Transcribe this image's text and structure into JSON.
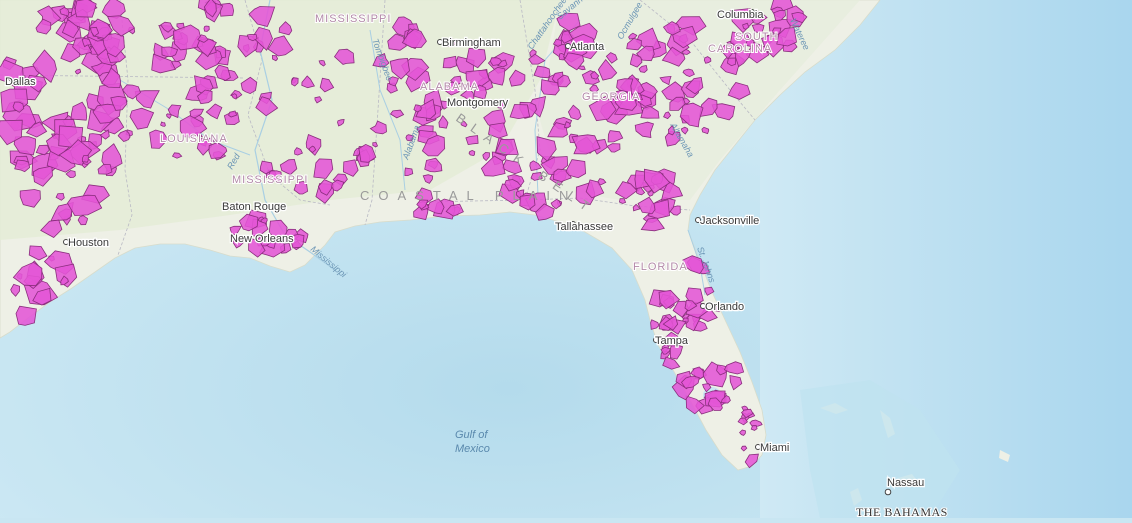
{
  "map": {
    "cities": [
      {
        "id": "dallas",
        "label": "Dallas"
      },
      {
        "id": "houston",
        "label": "Houston"
      },
      {
        "id": "baton-rouge",
        "label": "Baton Rouge"
      },
      {
        "id": "new-orleans",
        "label": "New Orleans"
      },
      {
        "id": "birmingham",
        "label": "Birmingham"
      },
      {
        "id": "montgomery",
        "label": "Montgomery"
      },
      {
        "id": "atlanta",
        "label": "Atlanta"
      },
      {
        "id": "columbia",
        "label": "Columbia"
      },
      {
        "id": "tallahassee",
        "label": "Tallahassee"
      },
      {
        "id": "jacksonville",
        "label": "Jacksonville"
      },
      {
        "id": "orlando",
        "label": "Orlando"
      },
      {
        "id": "tampa",
        "label": "Tampa"
      },
      {
        "id": "miami",
        "label": "Miami"
      },
      {
        "id": "nassau",
        "label": "Nassau"
      }
    ],
    "states": {
      "mississippi_river": "MISSISSIPPI",
      "louisiana": "LOUISIANA",
      "mississippi": "MISSISSIPPI",
      "alabama": "ALABAMA",
      "georgia": "GEORGIA",
      "south_carolina_1": "SOUTH",
      "south_carolina_2": "CAROLINA",
      "florida": "FLORIDA"
    },
    "region": "COASTAL PLAIN",
    "black_belt": "BLACK BELT",
    "water": {
      "line1": "Gulf of",
      "line2": "Mexico"
    },
    "country": "THE BAHAMAS",
    "rivers": {
      "mississippi": "Mississippi",
      "red": "Red",
      "tombigbee": "Tombigbee",
      "alabama_river": "Alabama",
      "chattahoochee": "Chattahoochee",
      "ocmulgee": "Ocmulgee",
      "savannah": "Savannah",
      "altamaha": "Altamaha",
      "st_johns": "St. Johns",
      "wateree": "Wateree"
    },
    "colors": {
      "overlay": "#e455d6",
      "overlay_stroke": "#8a2e7d",
      "land": "#eef0e6",
      "water": "#c9e6f2"
    }
  }
}
